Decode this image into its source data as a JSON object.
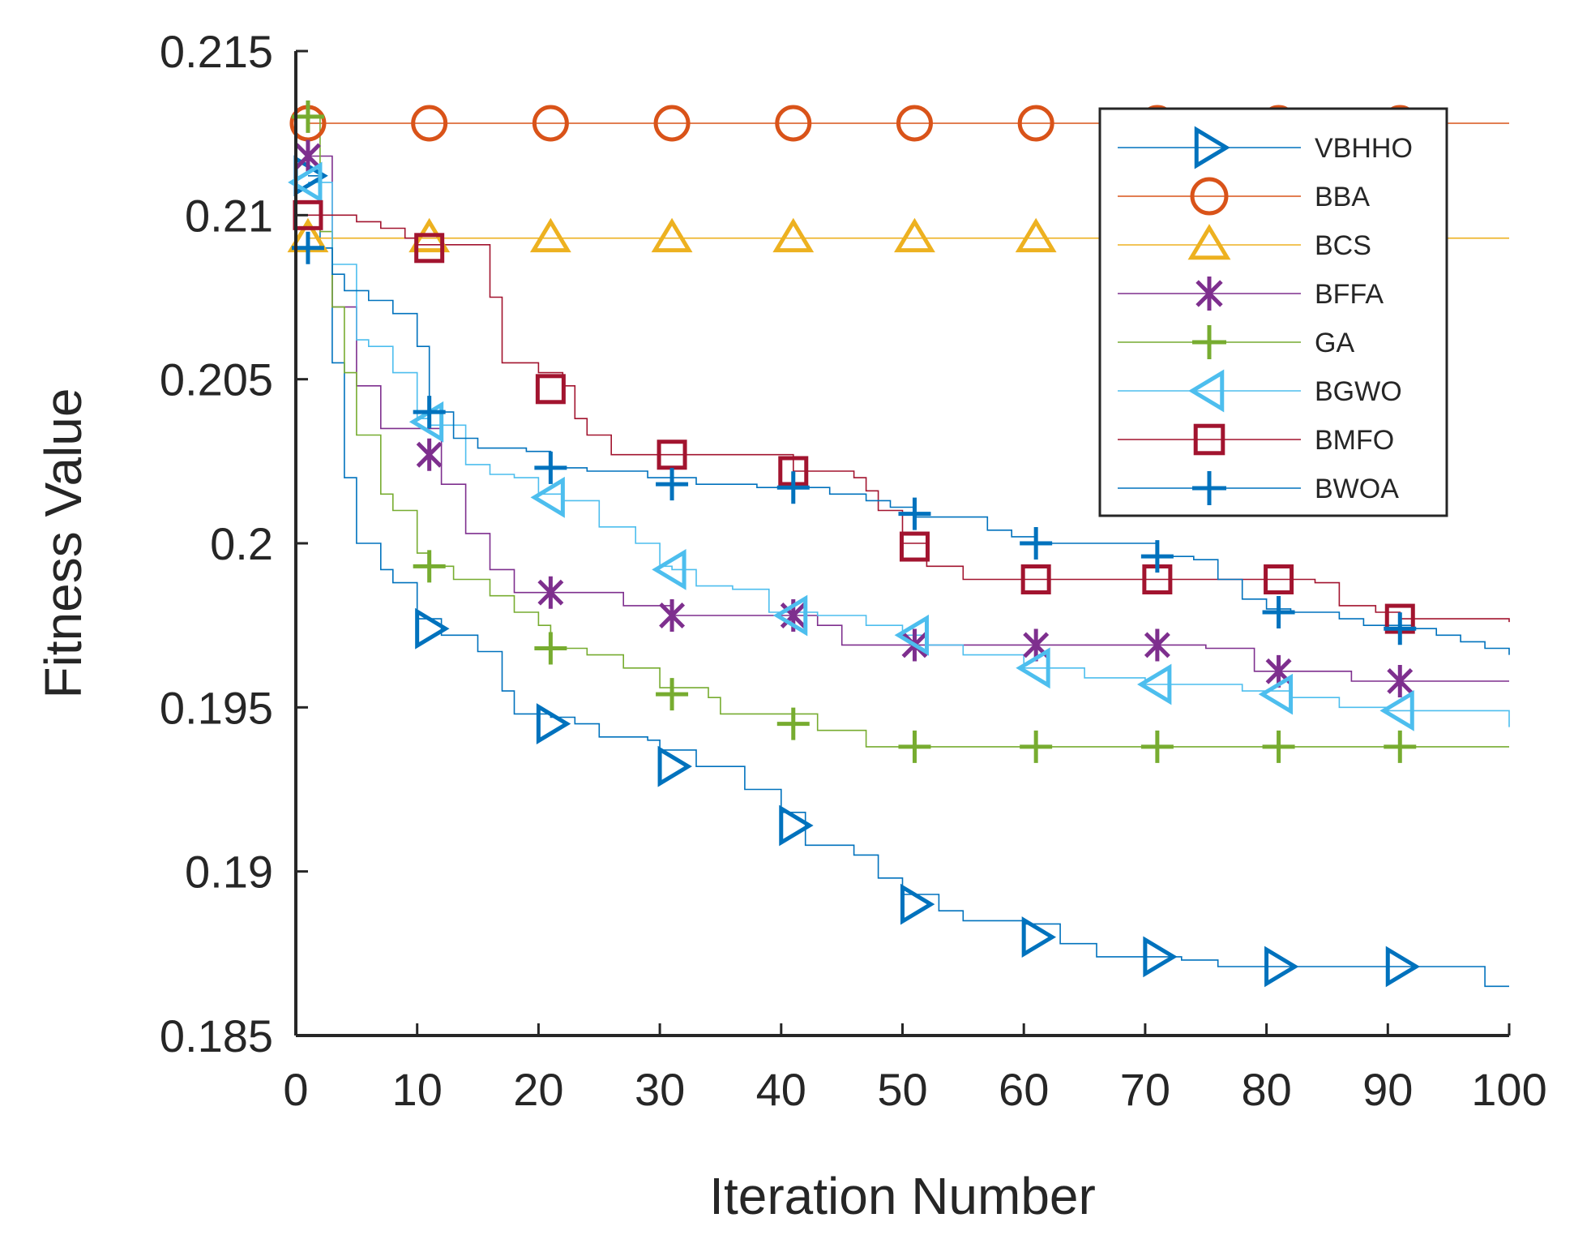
{
  "chart_data": {
    "type": "line",
    "title": "",
    "xlabel": "Iteration Number",
    "ylabel": "Fitness Value",
    "xlim": [
      0,
      100
    ],
    "ylim": [
      0.185,
      0.215
    ],
    "xticks": [
      0,
      10,
      20,
      30,
      40,
      50,
      60,
      70,
      80,
      90,
      100
    ],
    "xtick_labels": [
      "0",
      "10",
      "20",
      "30",
      "40",
      "50",
      "60",
      "70",
      "80",
      "90",
      "100"
    ],
    "yticks": [
      0.185,
      0.19,
      0.195,
      0.2,
      0.205,
      0.21,
      0.215
    ],
    "ytick_labels": [
      "0.185",
      "0.19",
      "0.195",
      "0.2",
      "0.205",
      "0.21",
      "0.215"
    ],
    "grid": false,
    "legend_position": "top-right",
    "marker_iterations": [
      1,
      11,
      21,
      31,
      41,
      51,
      61,
      71,
      81,
      91
    ],
    "series": [
      {
        "name": "VBHHO",
        "color": "#0072BD",
        "marker": "triangle-right",
        "line": [
          [
            1,
            0.2112
          ],
          [
            2,
            0.209
          ],
          [
            3,
            0.2055
          ],
          [
            4,
            0.202
          ],
          [
            5,
            0.2
          ],
          [
            7,
            0.1992
          ],
          [
            8,
            0.1988
          ],
          [
            10,
            0.1977
          ],
          [
            12,
            0.1972
          ],
          [
            15,
            0.1967
          ],
          [
            17,
            0.1955
          ],
          [
            18,
            0.1948
          ],
          [
            21,
            0.1947
          ],
          [
            23,
            0.1945
          ],
          [
            25,
            0.1941
          ],
          [
            29,
            0.194
          ],
          [
            30,
            0.1937
          ],
          [
            33,
            0.1932
          ],
          [
            37,
            0.1925
          ],
          [
            40,
            0.1918
          ],
          [
            42,
            0.1908
          ],
          [
            46,
            0.1905
          ],
          [
            48,
            0.1898
          ],
          [
            50,
            0.1893
          ],
          [
            53,
            0.1888
          ],
          [
            55,
            0.1885
          ],
          [
            60,
            0.1884
          ],
          [
            63,
            0.1878
          ],
          [
            66,
            0.1874
          ],
          [
            70,
            0.1874
          ],
          [
            73,
            0.1873
          ],
          [
            76,
            0.1871
          ],
          [
            80,
            0.1871
          ],
          [
            85,
            0.1871
          ],
          [
            90,
            0.1871
          ],
          [
            93,
            0.1871
          ],
          [
            97,
            0.1871
          ],
          [
            98,
            0.1865
          ],
          [
            100,
            0.1865
          ]
        ],
        "markers": [
          [
            1,
            0.2112
          ],
          [
            11,
            0.1974
          ],
          [
            21,
            0.1945
          ],
          [
            31,
            0.1932
          ],
          [
            41,
            0.1914
          ],
          [
            51,
            0.189
          ],
          [
            61,
            0.188
          ],
          [
            71,
            0.1874
          ],
          [
            81,
            0.1871
          ],
          [
            91,
            0.1871
          ]
        ]
      },
      {
        "name": "BBA",
        "color": "#D95319",
        "marker": "circle",
        "line": [
          [
            1,
            0.2128
          ],
          [
            100,
            0.2128
          ]
        ],
        "markers": [
          [
            1,
            0.2128
          ],
          [
            11,
            0.2128
          ],
          [
            21,
            0.2128
          ],
          [
            31,
            0.2128
          ],
          [
            41,
            0.2128
          ],
          [
            51,
            0.2128
          ],
          [
            61,
            0.2128
          ],
          [
            71,
            0.2128
          ],
          [
            81,
            0.2128
          ],
          [
            91,
            0.2128
          ]
        ]
      },
      {
        "name": "BCS",
        "color": "#EDB120",
        "marker": "triangle-up",
        "line": [
          [
            1,
            0.2093
          ],
          [
            100,
            0.2093
          ]
        ],
        "markers": [
          [
            1,
            0.2093
          ],
          [
            11,
            0.2093
          ],
          [
            21,
            0.2093
          ],
          [
            31,
            0.2093
          ],
          [
            41,
            0.2093
          ],
          [
            51,
            0.2093
          ],
          [
            61,
            0.2093
          ],
          [
            71,
            0.2093
          ],
          [
            81,
            0.2093
          ],
          [
            91,
            0.2093
          ]
        ]
      },
      {
        "name": "BFFA",
        "color": "#7E2F8E",
        "marker": "asterisk",
        "line": [
          [
            1,
            0.2118
          ],
          [
            3,
            0.2072
          ],
          [
            5,
            0.2048
          ],
          [
            7,
            0.2035
          ],
          [
            10,
            0.2035
          ],
          [
            12,
            0.2018
          ],
          [
            14,
            0.2003
          ],
          [
            16,
            0.1992
          ],
          [
            18,
            0.1985
          ],
          [
            21,
            0.1985
          ],
          [
            25,
            0.1985
          ],
          [
            27,
            0.1981
          ],
          [
            31,
            0.1978
          ],
          [
            36,
            0.1978
          ],
          [
            40,
            0.1978
          ],
          [
            43,
            0.1975
          ],
          [
            45,
            0.1969
          ],
          [
            50,
            0.1969
          ],
          [
            55,
            0.1969
          ],
          [
            60,
            0.1969
          ],
          [
            65,
            0.1969
          ],
          [
            70,
            0.1969
          ],
          [
            74,
            0.1969
          ],
          [
            75,
            0.1968
          ],
          [
            78,
            0.1968
          ],
          [
            79,
            0.1961
          ],
          [
            82,
            0.1961
          ],
          [
            86,
            0.1961
          ],
          [
            87,
            0.1958
          ],
          [
            100,
            0.1958
          ]
        ],
        "markers": [
          [
            1,
            0.2118
          ],
          [
            11,
            0.2027
          ],
          [
            21,
            0.1985
          ],
          [
            31,
            0.1978
          ],
          [
            41,
            0.1978
          ],
          [
            51,
            0.1969
          ],
          [
            61,
            0.1969
          ],
          [
            71,
            0.1969
          ],
          [
            81,
            0.1961
          ],
          [
            91,
            0.1958
          ]
        ]
      },
      {
        "name": "GA",
        "color": "#77AC30",
        "marker": "plus",
        "line": [
          [
            1,
            0.213
          ],
          [
            2,
            0.2095
          ],
          [
            3,
            0.2072
          ],
          [
            4,
            0.2052
          ],
          [
            5,
            0.2033
          ],
          [
            7,
            0.2015
          ],
          [
            8,
            0.201
          ],
          [
            10,
            0.1997
          ],
          [
            11,
            0.1993
          ],
          [
            13,
            0.1989
          ],
          [
            16,
            0.1984
          ],
          [
            18,
            0.1979
          ],
          [
            20,
            0.1975
          ],
          [
            21,
            0.1968
          ],
          [
            24,
            0.1966
          ],
          [
            27,
            0.1962
          ],
          [
            30,
            0.1956
          ],
          [
            34,
            0.1953
          ],
          [
            35,
            0.1948
          ],
          [
            40,
            0.1948
          ],
          [
            43,
            0.1943
          ],
          [
            47,
            0.1938
          ],
          [
            50,
            0.1938
          ],
          [
            100,
            0.1938
          ]
        ],
        "markers": [
          [
            1,
            0.213
          ],
          [
            11,
            0.1993
          ],
          [
            21,
            0.1968
          ],
          [
            31,
            0.1954
          ],
          [
            41,
            0.1945
          ],
          [
            51,
            0.1938
          ],
          [
            61,
            0.1938
          ],
          [
            71,
            0.1938
          ],
          [
            81,
            0.1938
          ],
          [
            91,
            0.1938
          ]
        ]
      },
      {
        "name": "BGWO",
        "color": "#4DBEEE",
        "marker": "triangle-left",
        "line": [
          [
            1,
            0.211
          ],
          [
            3,
            0.2085
          ],
          [
            5,
            0.2062
          ],
          [
            6,
            0.206
          ],
          [
            8,
            0.2052
          ],
          [
            10,
            0.2038
          ],
          [
            11,
            0.2036
          ],
          [
            14,
            0.2024
          ],
          [
            16,
            0.2021
          ],
          [
            18,
            0.202
          ],
          [
            20,
            0.2015
          ],
          [
            22,
            0.2013
          ],
          [
            25,
            0.2005
          ],
          [
            28,
            0.2
          ],
          [
            30,
            0.1993
          ],
          [
            31,
            0.1992
          ],
          [
            33,
            0.1987
          ],
          [
            36,
            0.1986
          ],
          [
            39,
            0.1979
          ],
          [
            43,
            0.1978
          ],
          [
            47,
            0.1975
          ],
          [
            50,
            0.1972
          ],
          [
            52,
            0.1969
          ],
          [
            55,
            0.1966
          ],
          [
            60,
            0.1962
          ],
          [
            62,
            0.1962
          ],
          [
            65,
            0.1959
          ],
          [
            70,
            0.1957
          ],
          [
            75,
            0.1957
          ],
          [
            78,
            0.1955
          ],
          [
            82,
            0.1953
          ],
          [
            86,
            0.195
          ],
          [
            90,
            0.1949
          ],
          [
            99,
            0.1949
          ],
          [
            100,
            0.1944
          ]
        ],
        "markers": [
          [
            1,
            0.211
          ],
          [
            11,
            0.2037
          ],
          [
            21,
            0.2014
          ],
          [
            31,
            0.1992
          ],
          [
            41,
            0.1978
          ],
          [
            51,
            0.1972
          ],
          [
            61,
            0.1962
          ],
          [
            71,
            0.1957
          ],
          [
            81,
            0.1954
          ],
          [
            91,
            0.1949
          ]
        ]
      },
      {
        "name": "BMFO",
        "color": "#A2142F",
        "marker": "square",
        "line": [
          [
            1,
            0.21
          ],
          [
            5,
            0.2098
          ],
          [
            7,
            0.2096
          ],
          [
            9,
            0.2093
          ],
          [
            10,
            0.2091
          ],
          [
            12,
            0.2091
          ],
          [
            15,
            0.2091
          ],
          [
            16,
            0.2075
          ],
          [
            17,
            0.2055
          ],
          [
            20,
            0.2052
          ],
          [
            22,
            0.2048
          ],
          [
            23,
            0.2038
          ],
          [
            24,
            0.2033
          ],
          [
            26,
            0.2027
          ],
          [
            30,
            0.2027
          ],
          [
            33,
            0.2027
          ],
          [
            38,
            0.2027
          ],
          [
            41,
            0.2022
          ],
          [
            46,
            0.202
          ],
          [
            47,
            0.2016
          ],
          [
            48,
            0.201
          ],
          [
            50,
            0.2
          ],
          [
            52,
            0.1993
          ],
          [
            55,
            0.1989
          ],
          [
            60,
            0.1989
          ],
          [
            65,
            0.1989
          ],
          [
            70,
            0.1989
          ],
          [
            75,
            0.1989
          ],
          [
            80,
            0.1989
          ],
          [
            84,
            0.1988
          ],
          [
            86,
            0.1981
          ],
          [
            89,
            0.1979
          ],
          [
            91,
            0.1977
          ],
          [
            100,
            0.1976
          ]
        ],
        "markers": [
          [
            1,
            0.21
          ],
          [
            11,
            0.209
          ],
          [
            21,
            0.2047
          ],
          [
            31,
            0.2027
          ],
          [
            41,
            0.2022
          ],
          [
            51,
            0.1999
          ],
          [
            61,
            0.1989
          ],
          [
            71,
            0.1989
          ],
          [
            81,
            0.1989
          ],
          [
            91,
            0.1977
          ]
        ]
      },
      {
        "name": "BWOA",
        "color": "#0072BD",
        "marker": "plus",
        "line": [
          [
            1,
            0.209
          ],
          [
            3,
            0.2082
          ],
          [
            4,
            0.2077
          ],
          [
            6,
            0.2074
          ],
          [
            8,
            0.207
          ],
          [
            10,
            0.206
          ],
          [
            11,
            0.204
          ],
          [
            13,
            0.2032
          ],
          [
            15,
            0.2029
          ],
          [
            19,
            0.2028
          ],
          [
            21,
            0.2023
          ],
          [
            24,
            0.2022
          ],
          [
            29,
            0.202
          ],
          [
            33,
            0.2018
          ],
          [
            36,
            0.2018
          ],
          [
            38,
            0.2017
          ],
          [
            42,
            0.2017
          ],
          [
            44,
            0.2015
          ],
          [
            47,
            0.2013
          ],
          [
            49,
            0.2011
          ],
          [
            51,
            0.2008
          ],
          [
            57,
            0.2004
          ],
          [
            59,
            0.2002
          ],
          [
            61,
            0.2
          ],
          [
            68,
            0.2
          ],
          [
            71,
            0.1996
          ],
          [
            74,
            0.1995
          ],
          [
            76,
            0.1989
          ],
          [
            78,
            0.1983
          ],
          [
            80,
            0.198
          ],
          [
            82,
            0.1979
          ],
          [
            86,
            0.1977
          ],
          [
            88,
            0.1975
          ],
          [
            92,
            0.1974
          ],
          [
            94,
            0.1972
          ],
          [
            96,
            0.197
          ],
          [
            98,
            0.1968
          ],
          [
            100,
            0.1966
          ]
        ],
        "markers": [
          [
            1,
            0.209
          ],
          [
            11,
            0.204
          ],
          [
            21,
            0.2023
          ],
          [
            31,
            0.2018
          ],
          [
            41,
            0.2017
          ],
          [
            51,
            0.2009
          ],
          [
            61,
            0.2
          ],
          [
            71,
            0.1996
          ],
          [
            81,
            0.1979
          ],
          [
            91,
            0.1974
          ]
        ]
      }
    ]
  }
}
